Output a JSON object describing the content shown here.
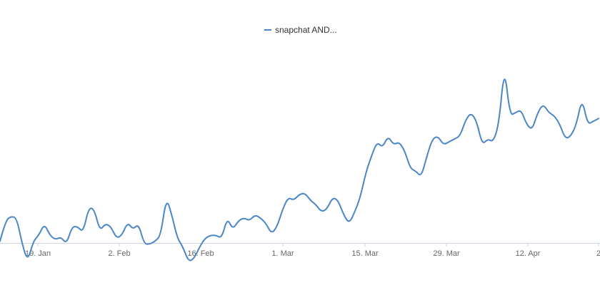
{
  "chart_data": {
    "type": "line",
    "title": "",
    "xlabel": "",
    "ylabel": "",
    "legend": {
      "position": "top-center"
    },
    "grid": false,
    "x_ticks": [
      "19. Jan",
      "2. Feb",
      "16. Feb",
      "1. Mar",
      "15. Mar",
      "29. Mar",
      "12. Apr",
      "2"
    ],
    "x_start": "2020-01-09",
    "x_step_days": 1,
    "series": [
      {
        "name": "snapchat AND...",
        "color": "#4a86c8",
        "values": [
          30,
          44,
          47,
          46,
          28,
          16,
          30,
          34,
          42,
          34,
          31,
          33,
          28,
          40,
          40,
          36,
          53,
          52,
          37,
          42,
          40,
          32,
          34,
          43,
          38,
          42,
          28,
          28,
          30,
          34,
          60,
          48,
          32,
          26,
          16,
          18,
          26,
          32,
          34,
          34,
          32,
          46,
          38,
          44,
          46,
          44,
          48,
          46,
          42,
          35,
          40,
          52,
          60,
          58,
          62,
          63,
          58,
          55,
          50,
          52,
          60,
          58,
          48,
          42,
          50,
          60,
          77,
          88,
          98,
          94,
          102,
          96,
          98,
          92,
          80,
          78,
          74,
          88,
          100,
          102,
          96,
          98,
          100,
          102,
          113,
          118,
          112,
          96,
          100,
          98,
          110,
          150,
          116,
          118,
          120,
          110,
          106,
          118,
          124,
          118,
          116,
          110,
          100,
          102,
          110,
          128,
          110,
          112,
          114
        ]
      }
    ]
  }
}
